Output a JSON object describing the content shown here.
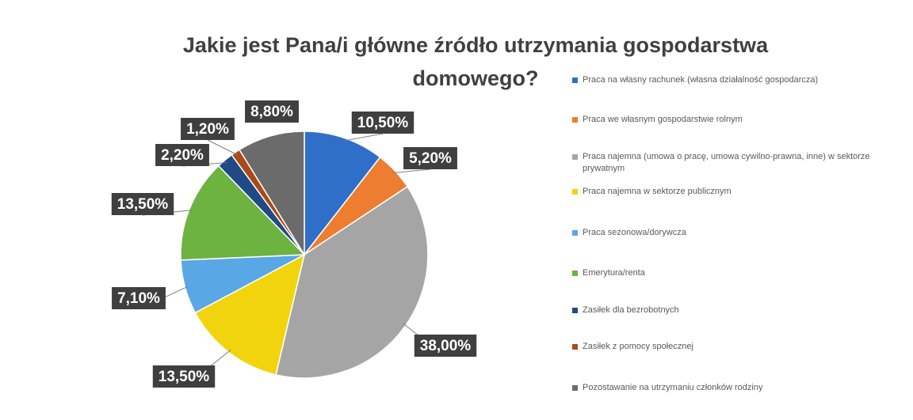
{
  "chart_data": {
    "type": "pie",
    "title": "Jakie jest Pana/i główne źródło utrzymania gospodarstwa domowego?",
    "categories": [
      "Praca na własny rachunek (własna działalność gospodarcza)",
      "Praca we własnym gospodarstwie rolnym",
      "Praca najemna (umowa o pracę, umowa cywilno-prawna, inne) w sektorze prywatnym",
      "Praca najemna w sektorze publicznym",
      "Praca sezonowa/dorywcza",
      "Emerytura/renta",
      "Zasiłek dla bezrobotnych",
      "Zasiłek z pomocy społecznej",
      "Pozostawanie na utrzymaniu członków rodziny"
    ],
    "values": [
      10.5,
      5.2,
      38.0,
      13.5,
      7.1,
      13.5,
      2.2,
      1.2,
      8.8
    ],
    "value_labels": [
      "10,50%",
      "5,20%",
      "38,00%",
      "13,50%",
      "7,10%",
      "13,50%",
      "2,20%",
      "1,20%",
      "8,80%"
    ],
    "colors": [
      "#2f6fc9",
      "#ed7d31",
      "#a5a5a5",
      "#f2d40e",
      "#5aa7e6",
      "#6db33f",
      "#1f4a86",
      "#a94a17",
      "#6b6b6b"
    ]
  }
}
